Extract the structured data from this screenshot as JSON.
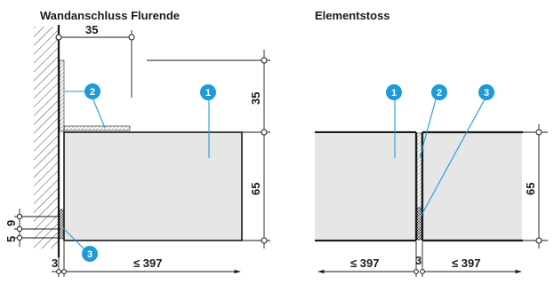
{
  "titles": {
    "left": "Wandanschluss Flurende",
    "right": "Elementstoss"
  },
  "dimensions": {
    "top_width": "35",
    "upper_height": "35",
    "panel_height_left": "65",
    "panel_height_right": "65",
    "gap_9": "9",
    "gap_5": "5",
    "gap_3_left": "3",
    "gap_3_right": "3",
    "width_left": "≤ 397",
    "width_right_a": "≤ 397",
    "width_right_b": "≤ 397"
  },
  "badges": {
    "left_1": "1",
    "left_2": "2",
    "left_3": "3",
    "right_1": "1",
    "right_2": "2",
    "right_3": "3"
  },
  "colors": {
    "badge": "#1e9bd7",
    "panel_fill": "#e6e6e6",
    "lines": "#1a1a1a"
  }
}
